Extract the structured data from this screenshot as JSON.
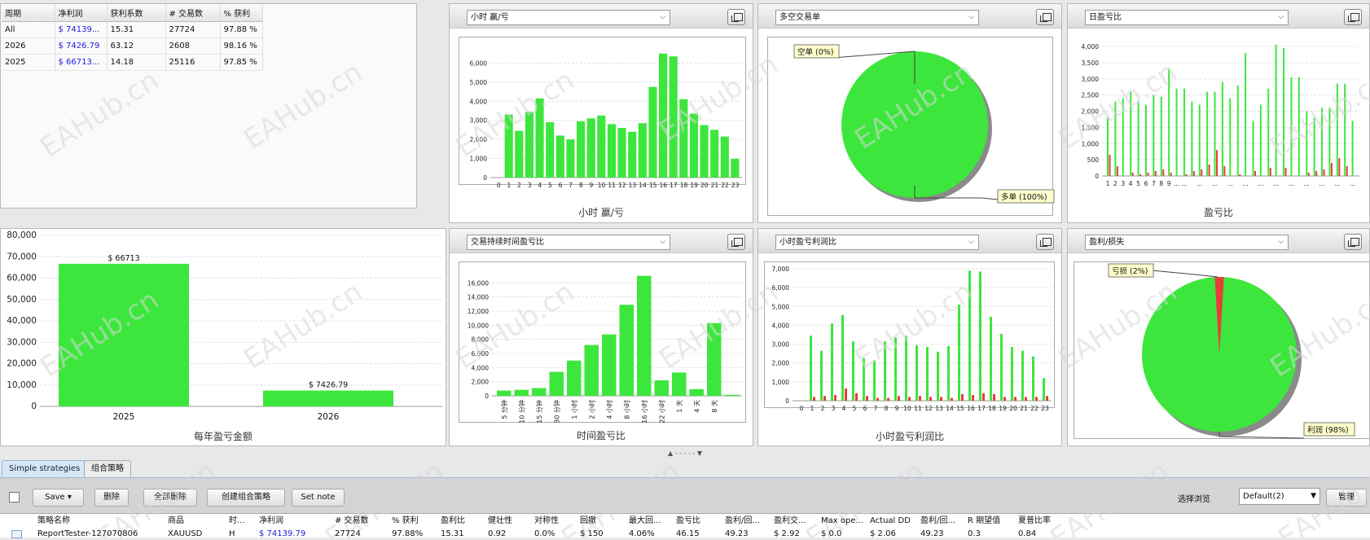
{
  "stats_table": {
    "headers": [
      "周期",
      "净利润",
      "获利系数",
      "# 交易数",
      "% 获利"
    ],
    "rows": [
      {
        "period": "All",
        "net": "$ 74139...",
        "pf": "15.31",
        "trades": "27724",
        "win": "97.88 %"
      },
      {
        "period": "2026",
        "net": "$ 7426.79",
        "pf": "63.12",
        "trades": "2608",
        "win": "98.16 %"
      },
      {
        "period": "2025",
        "net": "$ 66713...",
        "pf": "14.18",
        "trades": "25116",
        "win": "97.85 %"
      }
    ]
  },
  "panels": {
    "hourly": {
      "selector": "小时 赢/亏",
      "title": "小时 赢/亏"
    },
    "longshort": {
      "selector": "多空交易单",
      "short_label": "空单",
      "short_pct": "(0%)",
      "long_label": "多单",
      "long_pct": "(100%)"
    },
    "daily": {
      "selector": "日盈亏比",
      "title": "盈亏比"
    },
    "yearly": {
      "title": "每年盈亏金额"
    },
    "duration": {
      "selector": "交易持续时间盈亏比",
      "title": "时间盈亏比"
    },
    "hourly_profit": {
      "selector": "小时盈亏利润比",
      "title": "小时盈亏利润比"
    },
    "profitloss": {
      "selector": "盈利/损失",
      "loss_label": "亏损",
      "loss_pct": "(2%)",
      "profit_label": "利润",
      "profit_pct": "(98%)"
    }
  },
  "colors": {
    "green": "#3de63d",
    "red": "#e83c3c",
    "accent_blue": "#1a1ae0"
  },
  "chart_data": [
    {
      "type": "bar",
      "name": "hourly",
      "categories": [
        "0",
        "1",
        "2",
        "3",
        "4",
        "5",
        "6",
        "7",
        "8",
        "9",
        "10",
        "11",
        "12",
        "13",
        "14",
        "15",
        "16",
        "17",
        "18",
        "19",
        "20",
        "21",
        "22",
        "23"
      ],
      "values": [
        0,
        3300,
        2450,
        3450,
        4150,
        2900,
        2200,
        2000,
        2950,
        3100,
        3250,
        2800,
        2600,
        2400,
        2850,
        4750,
        6500,
        6350,
        4100,
        3350,
        2750,
        2500,
        2150,
        980
      ],
      "title": "小时 赢/亏",
      "ylim": [
        0,
        7000
      ],
      "yticks": [
        "0",
        "1,000",
        "2,000",
        "3,000",
        "4,000",
        "5,000",
        "6,000"
      ]
    },
    {
      "type": "pie",
      "name": "longshort",
      "labels": [
        "空单",
        "多单"
      ],
      "values": [
        0,
        100
      ]
    },
    {
      "type": "bar",
      "name": "daily",
      "tick_labels": [
        "1",
        "2",
        "3",
        "4",
        "5",
        "6",
        "7",
        "8",
        "9",
        "..."
      ],
      "ylim": [
        0,
        4000
      ],
      "yticks": [
        "0",
        "500",
        "1,000",
        "1,500",
        "2,000",
        "2,500",
        "3,000",
        "3,500",
        "4,000"
      ],
      "title": "盈亏比",
      "series": [
        {
          "values": [
            1800,
            2300,
            2400,
            2600,
            2300,
            2200,
            2500,
            2450,
            3300,
            2700,
            2700,
            2300,
            2200,
            2600,
            2600,
            2900,
            2400,
            2800,
            3800,
            1700,
            2200,
            2700,
            4050,
            3950,
            3050,
            3050,
            2000,
            1800,
            2100,
            2100,
            2850,
            2850,
            1700
          ]
        },
        {
          "values": [
            650,
            300,
            0,
            100,
            50,
            100,
            150,
            200,
            100,
            0,
            50,
            150,
            200,
            350,
            800,
            300,
            0,
            50,
            0,
            150,
            0,
            250,
            0,
            250,
            0,
            0,
            100,
            150,
            200,
            400,
            550,
            300,
            0
          ]
        }
      ]
    },
    {
      "type": "bar",
      "name": "yearly",
      "categories": [
        "2025",
        "2026"
      ],
      "values": [
        66713,
        7426.79
      ],
      "data_labels": [
        "$ 66713",
        "$ 7426.79"
      ],
      "title": "每年盈亏金额",
      "ylim": [
        0,
        80000
      ],
      "yticks": [
        "0",
        "10,000",
        "20,000",
        "30,000",
        "40,000",
        "50,000",
        "60,000",
        "70,000",
        "80,000"
      ]
    },
    {
      "type": "bar",
      "name": "duration",
      "categories": [
        "5 分钟",
        "10 分钟",
        "15 分钟",
        "30 分钟",
        "1 小时",
        "2 小时",
        "4 小时",
        "8 小时",
        "16 小时",
        "22 小时",
        "1 天",
        "4 天",
        "8 天"
      ],
      "values": [
        750,
        850,
        1100,
        3400,
        5000,
        7200,
        8700,
        12900,
        17000,
        2200,
        3300,
        950,
        10300
      ],
      "extra_value_last": 150,
      "title": "时间盈亏比",
      "ylim": [
        0,
        18000
      ],
      "yticks": [
        "0",
        "2,000",
        "4,000",
        "6,000",
        "8,000",
        "10,000",
        "12,000",
        "14,000",
        "16,000"
      ]
    },
    {
      "type": "bar",
      "name": "hourly_profit",
      "categories": [
        "0",
        "1",
        "2",
        "3",
        "4",
        "5",
        "6",
        "7",
        "8",
        "9",
        "10",
        "11",
        "12",
        "13",
        "14",
        "15",
        "16",
        "17",
        "18",
        "19",
        "20",
        "21",
        "22",
        "23"
      ],
      "title": "小时盈亏利润比",
      "ylim": [
        0,
        7000
      ],
      "yticks": [
        "0",
        "1,000",
        "2,000",
        "3,000",
        "4,000",
        "5,000",
        "6,000",
        "7,000"
      ],
      "series": [
        {
          "values": [
            0,
            3450,
            2650,
            4100,
            4550,
            3150,
            2250,
            2150,
            3150,
            3350,
            3450,
            2950,
            2850,
            2600,
            2900,
            5100,
            6900,
            6850,
            4450,
            3550,
            2850,
            2650,
            2350,
            1200
          ]
        },
        {
          "values": [
            0,
            200,
            250,
            300,
            650,
            400,
            250,
            150,
            150,
            250,
            200,
            250,
            200,
            200,
            150,
            350,
            300,
            400,
            350,
            200,
            200,
            200,
            200,
            250
          ]
        }
      ]
    },
    {
      "type": "pie",
      "name": "profitloss",
      "labels": [
        "亏损",
        "利润"
      ],
      "values": [
        2,
        98
      ]
    }
  ],
  "bottom": {
    "splitter": "▲ - - - - - ▼",
    "tabs": [
      "Simple strategies",
      "组合策略"
    ],
    "toolbar": {
      "save": "Save",
      "delete": "删除",
      "delete_all": "全部删除",
      "create_combo": "创建组合策略",
      "set_note": "Set note",
      "browse_label": "选择浏览",
      "browse_value": "Default(2)",
      "manage": "管理"
    },
    "grid_headers": [
      "策略名称",
      "商品",
      "时...",
      "净利润",
      "# 交易数",
      "% 获利",
      "盈利比",
      "健壮性",
      "对称性",
      "回撤",
      "最大回...",
      "盈亏比",
      "盈利/回...",
      "盈利交...",
      "Max ope...",
      "Actual DD",
      "盈利/回...",
      "R 期望值",
      "夏普比率"
    ],
    "grid_row": [
      "ReportTester-127070806",
      "XAUUSD",
      "H",
      "$ 74139.79",
      "27724",
      "97.88%",
      "15.31",
      "0.92",
      "0.0%",
      "$ 150",
      "4.06%",
      "46.15",
      "49.23",
      "$ 2.92",
      "$ 0.0",
      "$ 2.06",
      "49.23",
      "0.3",
      "0.84"
    ]
  },
  "watermark": "EAHub.cn"
}
